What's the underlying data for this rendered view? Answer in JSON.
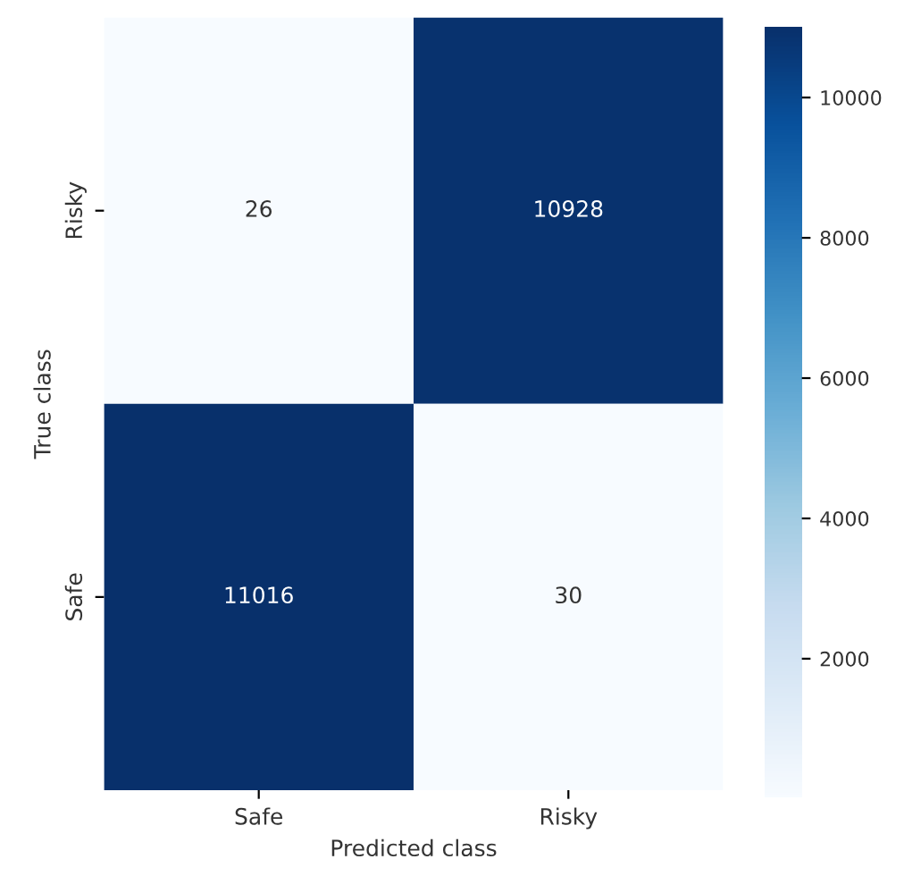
{
  "chart_data": {
    "type": "heatmap",
    "xlabel": "Predicted class",
    "ylabel": "True class",
    "categories": [
      "Safe",
      "Risky"
    ],
    "y_categories": [
      "Risky",
      "Safe"
    ],
    "cells": [
      [
        26,
        10928
      ],
      [
        11016,
        30
      ]
    ],
    "clim": [
      26,
      11016
    ],
    "cticks": [
      2000,
      4000,
      6000,
      8000,
      10000
    ],
    "data_labels": true
  }
}
